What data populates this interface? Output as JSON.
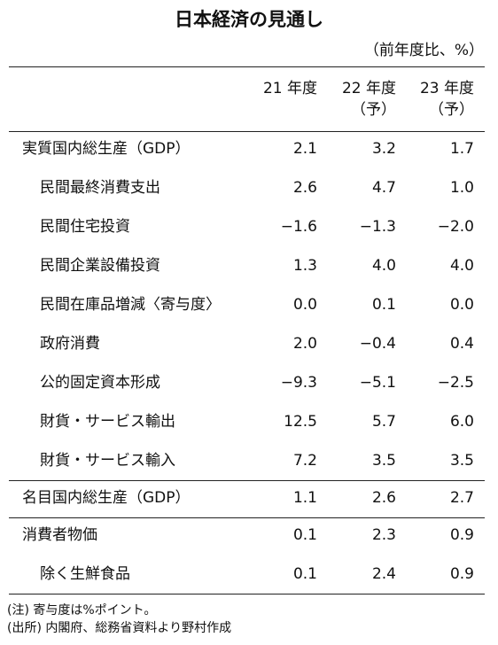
{
  "title": "日本経済の見通し",
  "unit": "（前年度比、%）",
  "table": {
    "headers": [
      [
        "21 年度"
      ],
      [
        "22 年度",
        "（予）"
      ],
      [
        "23 年度",
        "（予）"
      ]
    ],
    "groups": [
      {
        "rows": [
          {
            "label": "実質国内総生産（GDP）",
            "indent": false,
            "values": [
              "2.1",
              "3.2",
              "1.7"
            ]
          },
          {
            "label": "民間最終消費支出",
            "indent": true,
            "values": [
              "2.6",
              "4.7",
              "1.0"
            ]
          },
          {
            "label": "民間住宅投資",
            "indent": true,
            "values": [
              "−1.6",
              "−1.3",
              "−2.0"
            ]
          },
          {
            "label": "民間企業設備投資",
            "indent": true,
            "values": [
              "1.3",
              "4.0",
              "4.0"
            ]
          },
          {
            "label": "民間在庫品増減〈寄与度〉",
            "indent": true,
            "values": [
              "0.0",
              "0.1",
              "0.0"
            ]
          },
          {
            "label": "政府消費",
            "indent": true,
            "values": [
              "2.0",
              "−0.4",
              "0.4"
            ]
          },
          {
            "label": "公的固定資本形成",
            "indent": true,
            "values": [
              "−9.3",
              "−5.1",
              "−2.5"
            ]
          },
          {
            "label": "財貨・サービス輸出",
            "indent": true,
            "values": [
              "12.5",
              "5.7",
              "6.0"
            ]
          },
          {
            "label": "財貨・サービス輸入",
            "indent": true,
            "values": [
              "7.2",
              "3.5",
              "3.5"
            ]
          }
        ]
      },
      {
        "rows": [
          {
            "label": "名目国内総生産（GDP）",
            "indent": false,
            "values": [
              "1.1",
              "2.6",
              "2.7"
            ]
          }
        ]
      },
      {
        "rows": [
          {
            "label": "消費者物価",
            "indent": false,
            "values": [
              "0.1",
              "2.3",
              "0.9"
            ]
          },
          {
            "label": "除く生鮮食品",
            "indent": true,
            "values": [
              "0.1",
              "2.4",
              "0.9"
            ]
          }
        ]
      }
    ]
  },
  "notes": [
    "(注) 寄与度は%ポイント。",
    "(出所) 内閣府、総務省資料より野村作成"
  ]
}
